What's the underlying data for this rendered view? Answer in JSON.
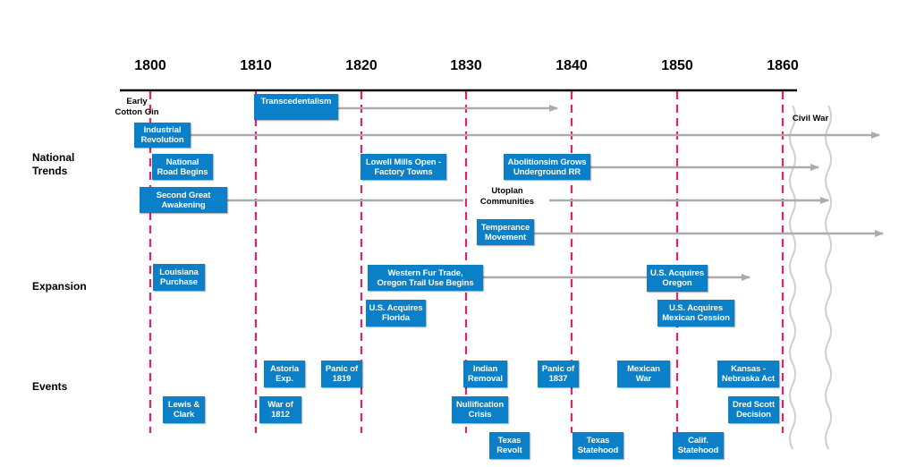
{
  "years": [
    "1800",
    "1810",
    "1820",
    "1830",
    "1840",
    "1850",
    "1860"
  ],
  "rows": {
    "national_trends": "National\nTrends",
    "expansion": "Expansion",
    "events": "Events"
  },
  "plain_labels": {
    "cotton_gin": "Early\nCotton Gin",
    "civil_war": "Civil War",
    "utopian": "Utoplan\nCommunities"
  },
  "national_trends": {
    "transcendentalism": "Transcedentalism",
    "industrial_revolution": "Industrial\nRevolution",
    "national_road": "National\nRoad Begins",
    "lowell_mills": "Lowell Mills Open -\nFactory Towns",
    "abolitionism": "Abolitionsim Grows\nUnderground RR",
    "second_great_awakening": "Second Great\nAwakening",
    "temperance": "Temperance\nMovement"
  },
  "expansion": {
    "louisiana": "Louisiana\nPurchase",
    "western_fur_trade": "Western Fur Trade,\nOregon Trail Use Begins",
    "oregon": "U.S. Acquires\nOregon",
    "florida": "U.S. Acquires\nFlorida",
    "mexican_cession": "U.S. Acquires\nMexican Cession"
  },
  "events": {
    "astoria": "Astoria\nExp.",
    "panic_1819": "Panic of\n1819",
    "indian_removal": "Indian\nRemoval",
    "panic_1837": "Panic of\n1837",
    "mexican_war": "Mexican\nWar",
    "kansas_nebraska": "Kansas -\nNebraska Act",
    "lewis_clark": "Lewis &\nClark",
    "war_1812": "War of\n1812",
    "nullification": "Nullification\nCrisis",
    "dred_scott": "Dred Scott\nDecision",
    "texas_revolt": "Texas\nRevolt",
    "texas_statehood": "Texas\nStatehood",
    "calif_statehood": "Calif.\nStatehood"
  },
  "colors": {
    "box": "#0b7fc7",
    "box_text": "#ffffff",
    "year_line": "#e6206f",
    "arrow": "#ababab",
    "axis": "#000000"
  }
}
